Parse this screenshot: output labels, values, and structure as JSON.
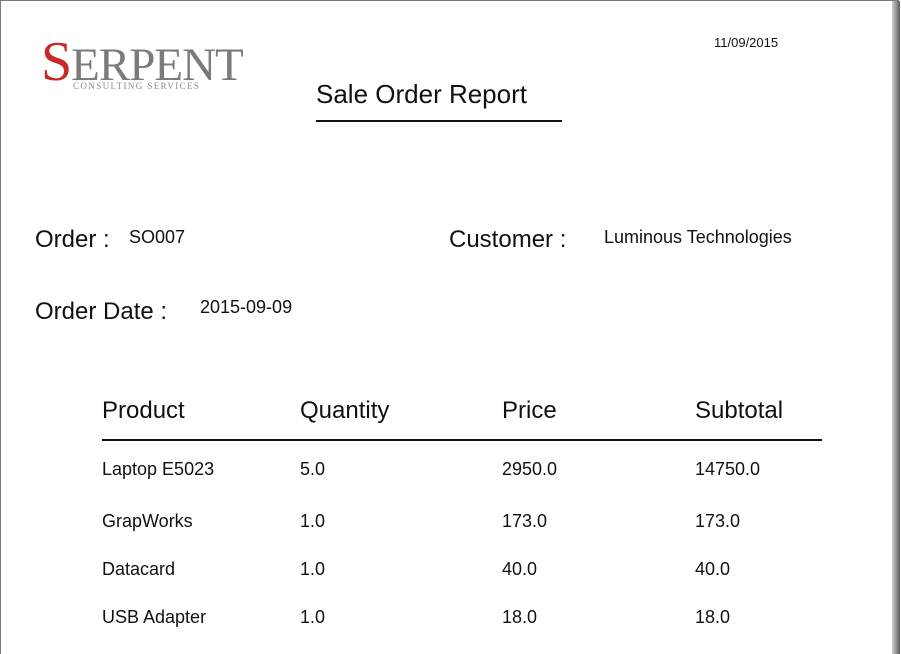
{
  "header": {
    "logo": {
      "first_letter": "S",
      "rest": "ERPENT",
      "tagline": "CONSULTING SERVICES"
    },
    "date": "11/09/2015",
    "title": "Sale Order Report"
  },
  "order": {
    "order_label": "Order :",
    "order_value": "SO007",
    "customer_label": "Customer :",
    "customer_value": "Luminous Technologies",
    "date_label": "Order Date :",
    "date_value": "2015-09-09"
  },
  "table": {
    "columns": [
      "Product",
      "Quantity",
      "Price",
      "Subtotal"
    ],
    "rows": [
      [
        "Laptop E5023",
        "5.0",
        "2950.0",
        "14750.0"
      ],
      [
        "GrapWorks",
        "1.0",
        "173.0",
        "173.0"
      ],
      [
        "Datacard",
        "1.0",
        "40.0",
        "40.0"
      ],
      [
        "USB Adapter",
        "1.0",
        "18.0",
        "18.0"
      ]
    ]
  },
  "colors": {
    "logo_accent": "#c8282a",
    "logo_gray": "#7b7b7b"
  }
}
